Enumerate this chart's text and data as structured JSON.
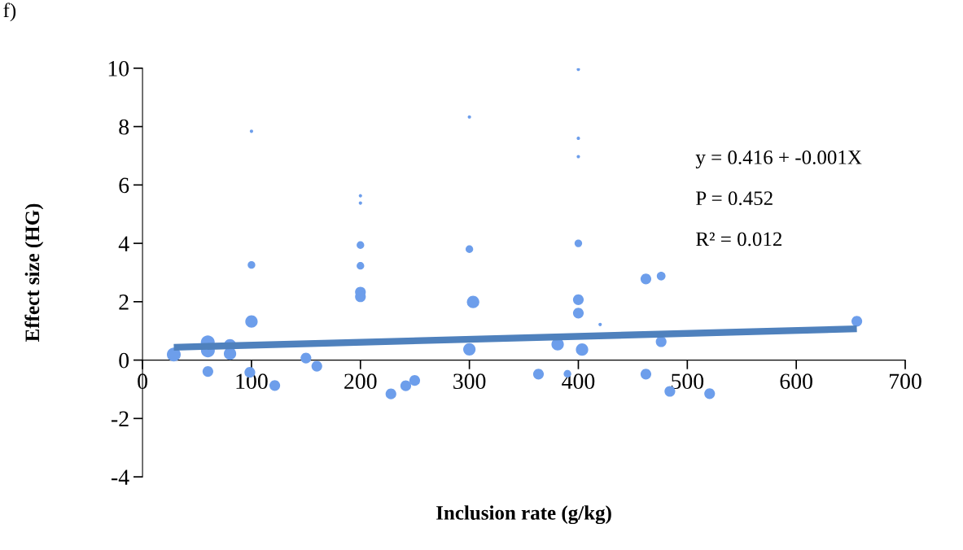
{
  "chart_data": {
    "type": "bubble",
    "xlabel": "Inclusion rate (g/kg)",
    "ylabel": "Effect size (HG)",
    "xlim": [
      0,
      700
    ],
    "xticks": [
      0,
      100,
      200,
      300,
      400,
      500,
      600,
      700
    ],
    "ylim": [
      -4,
      10
    ],
    "yticks": [
      -4,
      -2,
      0,
      2,
      4,
      6,
      8,
      10
    ],
    "grid": false,
    "legend": false,
    "annotations": [
      "f)",
      "y = 0.416 + -0.001X",
      "P = 0.452",
      "R² = 0.012"
    ],
    "series": [
      {
        "color": "#6d9eeb",
        "x": [
          28.7,
          59.9,
          60,
          60,
          80.3,
          80.3,
          100,
          100,
          100,
          98.5,
          121.4,
          150,
          160,
          200,
          200,
          200,
          200,
          200,
          200,
          228,
          241.6,
          249.8,
          300,
          300,
          303.4,
          300,
          363.4,
          381,
          390,
          400,
          400,
          400,
          400,
          400,
          400,
          403.4,
          420,
          462,
          476,
          476,
          462,
          484,
          520.5,
          655.6
        ],
        "values": [
          0.19,
          0.61,
          0.33,
          -0.39,
          0.51,
          0.22,
          7.84,
          3.26,
          1.32,
          -0.42,
          -0.87,
          0.07,
          -0.21,
          5.63,
          5.38,
          3.94,
          3.23,
          2.33,
          2.17,
          -1.16,
          -0.88,
          -0.7,
          8.33,
          3.8,
          1.99,
          0.37,
          -0.48,
          0.54,
          -0.47,
          9.96,
          7.6,
          6.97,
          4.0,
          2.07,
          1.61,
          0.36,
          1.22,
          2.78,
          2.88,
          0.63,
          -0.48,
          -1.07,
          -1.15,
          1.33
        ],
        "sizes": [
          1,
          1,
          1,
          0.6,
          0.8,
          0.8,
          0.06,
          0.3,
          0.8,
          0.6,
          0.6,
          0.6,
          0.6,
          0.06,
          0.06,
          0.3,
          0.3,
          0.6,
          0.6,
          0.6,
          0.6,
          0.6,
          0.06,
          0.3,
          0.8,
          0.8,
          0.6,
          0.8,
          0.3,
          0.06,
          0.06,
          0.06,
          0.3,
          0.6,
          0.6,
          0.8,
          0.06,
          0.6,
          0.4,
          0.6,
          0.6,
          0.6,
          0.6,
          0.6
        ]
      },
      {
        "type": "line",
        "color": "#4f81bd",
        "x": [
          28.7,
          655.6
        ],
        "values": [
          0.44,
          1.07
        ]
      }
    ]
  }
}
